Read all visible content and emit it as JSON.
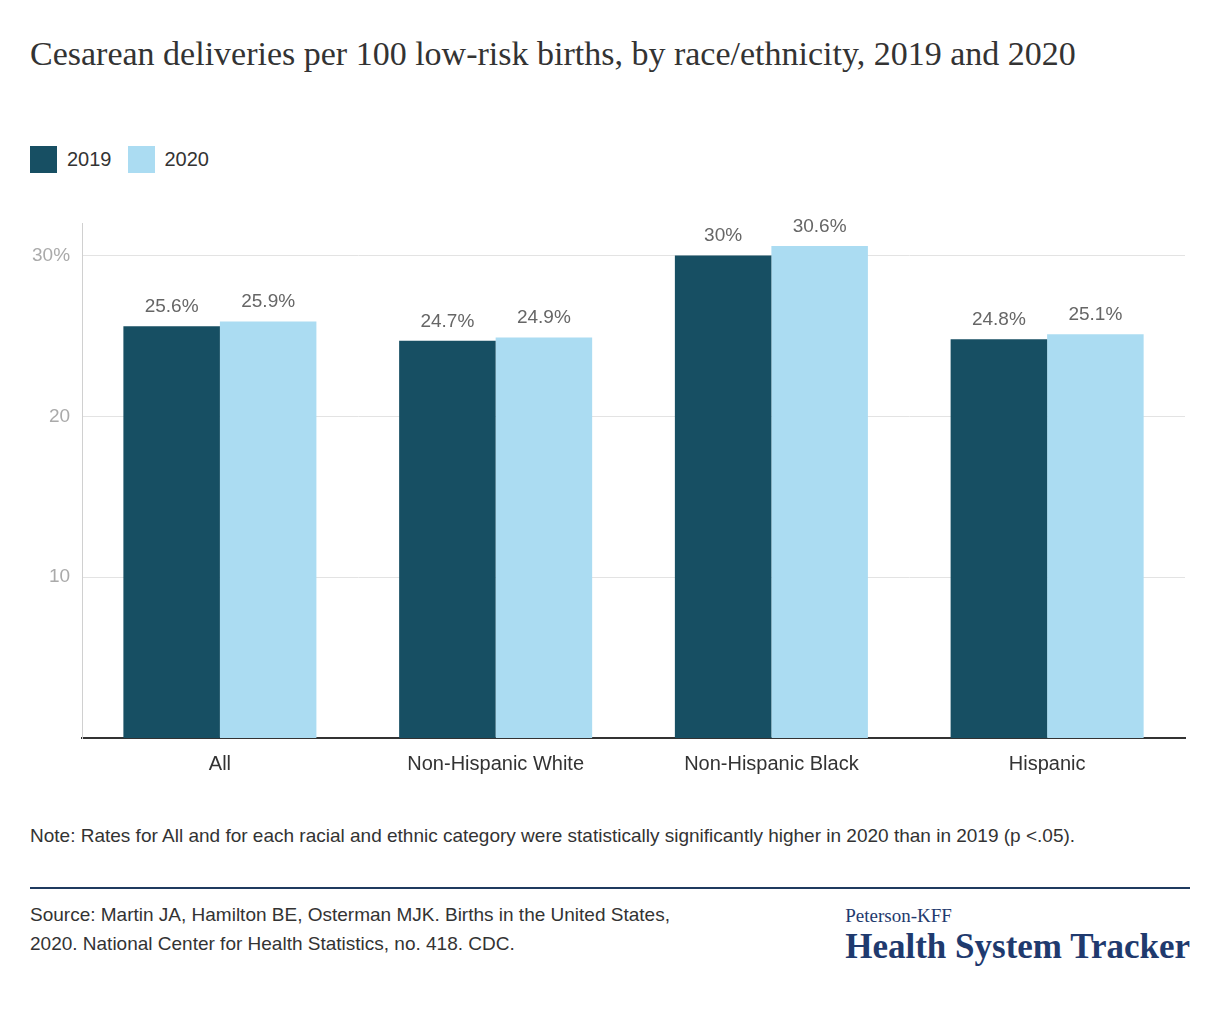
{
  "chart_data": {
    "type": "bar",
    "title": "Cesarean deliveries per 100 low-risk births, by race/ethnicity, 2019 and 2020",
    "categories": [
      "All",
      "Non-Hispanic White",
      "Non-Hispanic Black",
      "Hispanic"
    ],
    "series": [
      {
        "name": "2019",
        "color": "#174f63",
        "values": [
          25.6,
          24.7,
          30,
          24.8
        ],
        "value_labels": [
          "25.6%",
          "24.7%",
          "30%",
          "24.8%"
        ]
      },
      {
        "name": "2020",
        "color": "#abdcf2",
        "values": [
          25.9,
          24.9,
          30.6,
          25.1
        ],
        "value_labels": [
          "25.9%",
          "24.9%",
          "30.6%",
          "25.1%"
        ]
      }
    ],
    "ylim": [
      0,
      32
    ],
    "yticks": [
      10,
      20,
      {
        "value": 30,
        "label": "30%"
      }
    ],
    "grid": true,
    "legend": "top-left",
    "data_labels": true,
    "note": "Note: Rates for All and for each racial and ethnic category were statistically significantly higher in 2020 than in 2019 (p <.05).",
    "source": "Source: Martin JA, Hamilton BE, Osterman MJK. Births in the United States, 2020. National Center for Health Statistics, no. 418. CDC.",
    "brand_top": "Peterson-KFF",
    "brand_main": "Health System Tracker"
  }
}
